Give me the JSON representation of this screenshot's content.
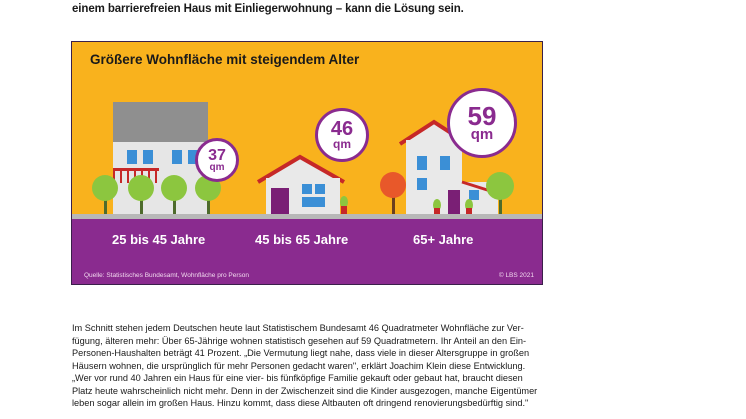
{
  "intro_line": "einem barrierefreien Haus mit Einliegerwohnung – kann die Lösung sein.",
  "infographic": {
    "title": "Größere Wohnfläche mit steigendem Alter",
    "groups": [
      {
        "age": "25 bis 45 Jahre",
        "area": "37",
        "unit": "qm"
      },
      {
        "age": "45 bis 65 Jahre",
        "area": "46",
        "unit": "qm"
      },
      {
        "age": "65+ Jahre",
        "area": "59",
        "unit": "qm"
      }
    ],
    "source": "Quelle: Statistisches Bundesamt, Wohnfläche pro Person",
    "copyright": "© LBS 2021",
    "colors": {
      "background": "#f9b21d",
      "band": "#8a2b8f",
      "accent": "#8a2b8f"
    }
  },
  "paragraph_lines": [
    "Im Schnitt stehen jedem Deutschen heute laut Statistischem Bundesamt 46 Quadratmeter Wohnfläche zur Ver-",
    "fügung, älteren mehr: Über 65-Jährige wohnen statistisch gesehen auf 59 Quadratmetern. Ihr Anteil an den Ein-",
    "Personen-Haushalten beträgt 41 Prozent. „Die Vermutung liegt nahe, dass viele in dieser Altersgruppe in großen",
    "Häusern wohnen, die ursprünglich für mehr Personen gedacht waren\", erklärt Joachim Klein diese Entwicklung.",
    "„Wer vor rund 40 Jahren ein Haus für eine vier- bis fünfköpfige Familie gekauft oder gebaut hat, braucht diesen",
    "Platz heute wahrscheinlich nicht mehr. Denn in der Zwischenzeit sind die Kinder ausgezogen, manche Eigentümer",
    "leben sogar allein im großen Haus. Hinzu kommt, dass diese Altbauten oft dringend renovierungsbedürftig sind.\""
  ]
}
